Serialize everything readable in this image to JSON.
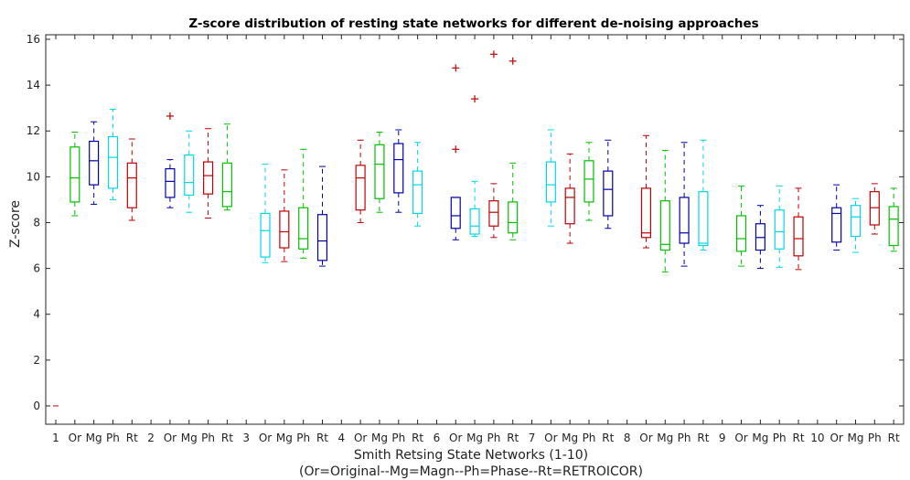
{
  "chart_data": {
    "type": "box",
    "title": "Z-score distribution of resting state networks for different de-noising approaches",
    "xlabel": "Smith Retsing State Networks (1-10)",
    "xlabel2": "(Or=Original--Mg=Magn--Ph=Phase--Rt=RETROICOR)",
    "ylabel": "Z-score",
    "ylim": [
      -0.8,
      16.2
    ],
    "yticks": [
      0,
      2,
      4,
      6,
      8,
      10,
      12,
      14,
      16
    ],
    "categories": [
      "1",
      "Or",
      "Mg",
      "Ph",
      "Rt",
      "2",
      "Or",
      "Mg",
      "Ph",
      "Rt",
      "3",
      "Or",
      "Mg",
      "Ph",
      "Rt",
      "4",
      "Or",
      "Mg",
      "Ph",
      "Rt",
      "6",
      "Or",
      "Mg",
      "Ph",
      "Rt",
      "7",
      "Or",
      "Mg",
      "Ph",
      "Rt",
      "8",
      "Or",
      "Mg",
      "Ph",
      "Rt",
      "9",
      "Or",
      "Mg",
      "Ph",
      "Rt",
      "10",
      "Or",
      "Mg",
      "Ph",
      "Rt"
    ],
    "colors": {
      "green": "#00c000",
      "blue": "#0000a8",
      "cyan": "#00d8e8",
      "red": "#c00000",
      "axis": "#262626"
    },
    "boxes": [
      {
        "pos": 2,
        "color": "green",
        "whislo": 8.3,
        "q1": 8.9,
        "med": 9.95,
        "q3": 11.3,
        "whishi": 11.95,
        "outliers": []
      },
      {
        "pos": 3,
        "color": "blue",
        "whislo": 8.8,
        "q1": 9.65,
        "med": 10.7,
        "q3": 11.55,
        "whishi": 12.4,
        "outliers": []
      },
      {
        "pos": 4,
        "color": "cyan",
        "whislo": 9.0,
        "q1": 9.5,
        "med": 10.85,
        "q3": 11.75,
        "whishi": 12.95,
        "outliers": []
      },
      {
        "pos": 5,
        "color": "red",
        "whislo": 8.1,
        "q1": 8.65,
        "med": 9.95,
        "q3": 10.6,
        "whishi": 11.65,
        "outliers": []
      },
      {
        "pos": 7,
        "color": "blue",
        "whislo": 8.65,
        "q1": 9.1,
        "med": 9.8,
        "q3": 10.35,
        "whishi": 10.75,
        "outliers": [
          12.65
        ]
      },
      {
        "pos": 8,
        "color": "cyan",
        "whislo": 8.45,
        "q1": 9.2,
        "med": 9.75,
        "q3": 10.95,
        "whishi": 12.0,
        "outliers": []
      },
      {
        "pos": 9,
        "color": "red",
        "whislo": 8.2,
        "q1": 9.25,
        "med": 10.05,
        "q3": 10.65,
        "whishi": 12.1,
        "outliers": []
      },
      {
        "pos": 10,
        "color": "green",
        "whislo": 8.55,
        "q1": 8.7,
        "med": 9.35,
        "q3": 10.6,
        "whishi": 12.3,
        "outliers": []
      },
      {
        "pos": 12,
        "color": "cyan",
        "whislo": 6.25,
        "q1": 6.5,
        "med": 7.65,
        "q3": 8.4,
        "whishi": 10.55,
        "outliers": []
      },
      {
        "pos": 13,
        "color": "red",
        "whislo": 6.3,
        "q1": 6.9,
        "med": 7.6,
        "q3": 8.5,
        "whishi": 10.3,
        "outliers": []
      },
      {
        "pos": 14,
        "color": "green",
        "whislo": 6.45,
        "q1": 6.85,
        "med": 7.3,
        "q3": 8.65,
        "whishi": 11.2,
        "outliers": []
      },
      {
        "pos": 15,
        "color": "blue",
        "whislo": 6.1,
        "q1": 6.35,
        "med": 7.2,
        "q3": 8.35,
        "whishi": 10.45,
        "outliers": []
      },
      {
        "pos": 17,
        "color": "red",
        "whislo": 8.0,
        "q1": 8.55,
        "med": 9.95,
        "q3": 10.5,
        "whishi": 11.6,
        "outliers": []
      },
      {
        "pos": 18,
        "color": "green",
        "whislo": 8.45,
        "q1": 9.05,
        "med": 10.55,
        "q3": 11.4,
        "whishi": 11.95,
        "outliers": []
      },
      {
        "pos": 19,
        "color": "blue",
        "whislo": 8.45,
        "q1": 9.3,
        "med": 10.75,
        "q3": 11.45,
        "whishi": 12.05,
        "outliers": []
      },
      {
        "pos": 20,
        "color": "cyan",
        "whislo": 7.85,
        "q1": 8.4,
        "med": 9.65,
        "q3": 10.25,
        "whishi": 11.5,
        "outliers": []
      },
      {
        "pos": 22,
        "color": "blue",
        "whislo": 7.25,
        "q1": 7.75,
        "med": 8.3,
        "q3": 9.1,
        "whishi": 9.1,
        "outliers": []
      },
      {
        "pos": 23,
        "color": "cyan",
        "whislo": 7.4,
        "q1": 7.5,
        "med": 7.85,
        "q3": 8.6,
        "whishi": 9.8,
        "outliers": []
      },
      {
        "pos": 24,
        "color": "red",
        "whislo": 7.35,
        "q1": 7.85,
        "med": 8.45,
        "q3": 8.95,
        "whishi": 9.7,
        "outliers": []
      },
      {
        "pos": 25,
        "color": "green",
        "whislo": 7.25,
        "q1": 7.55,
        "med": 8.0,
        "q3": 8.9,
        "whishi": 10.6,
        "outliers": []
      },
      {
        "pos": 27,
        "color": "cyan",
        "whislo": 7.85,
        "q1": 8.9,
        "med": 9.65,
        "q3": 10.65,
        "whishi": 12.05,
        "outliers": []
      },
      {
        "pos": 28,
        "color": "red",
        "whislo": 7.1,
        "q1": 7.95,
        "med": 9.1,
        "q3": 9.5,
        "whishi": 11.0,
        "outliers": []
      },
      {
        "pos": 29,
        "color": "green",
        "whislo": 8.1,
        "q1": 8.9,
        "med": 9.9,
        "q3": 10.7,
        "whishi": 11.5,
        "outliers": []
      },
      {
        "pos": 30,
        "color": "blue",
        "whislo": 7.75,
        "q1": 8.3,
        "med": 9.45,
        "q3": 10.25,
        "whishi": 11.6,
        "outliers": []
      },
      {
        "pos": 32,
        "color": "red",
        "whislo": 6.9,
        "q1": 7.35,
        "med": 7.55,
        "q3": 9.5,
        "whishi": 11.8,
        "outliers": []
      },
      {
        "pos": 33,
        "color": "green",
        "whislo": 5.85,
        "q1": 6.8,
        "med": 7.05,
        "q3": 8.95,
        "whishi": 11.15,
        "outliers": []
      },
      {
        "pos": 34,
        "color": "blue",
        "whislo": 6.1,
        "q1": 7.1,
        "med": 7.55,
        "q3": 9.1,
        "whishi": 11.5,
        "outliers": []
      },
      {
        "pos": 35,
        "color": "cyan",
        "whislo": 6.8,
        "q1": 7.0,
        "med": 7.1,
        "q3": 9.35,
        "whishi": 11.6,
        "outliers": []
      },
      {
        "pos": 37,
        "color": "green",
        "whislo": 6.1,
        "q1": 6.75,
        "med": 7.3,
        "q3": 8.3,
        "whishi": 9.6,
        "outliers": []
      },
      {
        "pos": 38,
        "color": "blue",
        "whislo": 6.0,
        "q1": 6.8,
        "med": 7.35,
        "q3": 7.95,
        "whishi": 8.75,
        "outliers": []
      },
      {
        "pos": 39,
        "color": "cyan",
        "whislo": 6.05,
        "q1": 6.85,
        "med": 7.6,
        "q3": 8.55,
        "whishi": 9.6,
        "outliers": []
      },
      {
        "pos": 40,
        "color": "red",
        "whislo": 5.95,
        "q1": 6.55,
        "med": 7.3,
        "q3": 8.25,
        "whishi": 9.5,
        "outliers": []
      },
      {
        "pos": 42,
        "color": "blue",
        "whislo": 6.8,
        "q1": 7.15,
        "med": 8.4,
        "q3": 8.65,
        "whishi": 9.65,
        "outliers": []
      },
      {
        "pos": 43,
        "color": "cyan",
        "whislo": 6.7,
        "q1": 7.4,
        "med": 8.25,
        "q3": 8.75,
        "whishi": 9.05,
        "outliers": []
      },
      {
        "pos": 44,
        "color": "red",
        "whislo": 7.5,
        "q1": 7.9,
        "med": 8.65,
        "q3": 9.35,
        "whishi": 9.7,
        "outliers": []
      },
      {
        "pos": 45,
        "color": "green",
        "whislo": 6.75,
        "q1": 7.0,
        "med": 8.15,
        "q3": 8.7,
        "whishi": 9.5,
        "outliers": []
      }
    ],
    "extra_outliers": [
      {
        "pos": 22,
        "color": "red",
        "values": [
          14.75,
          11.2
        ]
      },
      {
        "pos": 23,
        "color": "red",
        "values": [
          13.4
        ]
      },
      {
        "pos": 24,
        "color": "red",
        "values": [
          15.35
        ]
      },
      {
        "pos": 25,
        "color": "red",
        "values": [
          15.05
        ]
      }
    ],
    "zero_marker": {
      "pos": 1,
      "value": 0,
      "color": "red"
    },
    "legend": "none",
    "grid": false
  }
}
